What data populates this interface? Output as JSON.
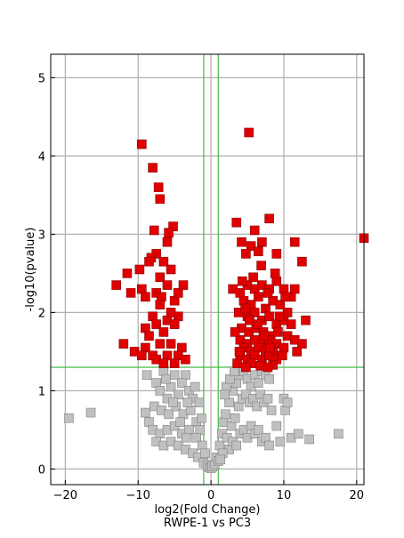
{
  "chart_data": {
    "type": "scatter",
    "xlabel": "log2(Fold Change)",
    "subtitle": "RWPE-1 vs PC3",
    "ylabel": "-log10(pvalue)",
    "xlim": [
      -22,
      21
    ],
    "ylim": [
      -0.2,
      5.3
    ],
    "xticks": [
      -20,
      -10,
      0,
      10,
      20
    ],
    "yticks": [
      0,
      1,
      2,
      3,
      4,
      5
    ],
    "grid": true,
    "thresholds": {
      "x": [
        -1,
        1
      ],
      "y": 1.3
    },
    "colors": {
      "significant": "#e00000",
      "significant_edge": "#8a0000",
      "not_significant": "#c0c0c0",
      "not_significant_edge": "#808080",
      "threshold_line": "#44bb44",
      "grid": "#b0b0b0"
    },
    "series": [
      {
        "category": "significant",
        "points": [
          [
            -9.5,
            4.15
          ],
          [
            -8,
            3.85
          ],
          [
            -7.2,
            3.6
          ],
          [
            -7,
            3.45
          ],
          [
            -5.2,
            3.1
          ],
          [
            -7.8,
            3.05
          ],
          [
            -5.8,
            3.02
          ],
          [
            -6,
            2.9
          ],
          [
            -7.5,
            2.75
          ],
          [
            -8.2,
            2.7
          ],
          [
            -8.5,
            2.65
          ],
          [
            -6.5,
            2.65
          ],
          [
            -9.8,
            2.55
          ],
          [
            -11.5,
            2.5
          ],
          [
            -5.5,
            2.55
          ],
          [
            -7,
            2.45
          ],
          [
            -13,
            2.35
          ],
          [
            -9.5,
            2.3
          ],
          [
            -6,
            2.35
          ],
          [
            -3.8,
            2.35
          ],
          [
            -11,
            2.25
          ],
          [
            -9,
            2.2
          ],
          [
            -7.5,
            2.25
          ],
          [
            -6.8,
            2.2
          ],
          [
            -5,
            2.15
          ],
          [
            -4.5,
            2.25
          ],
          [
            -7,
            2.1
          ],
          [
            -5.5,
            2.0
          ],
          [
            -8,
            1.95
          ],
          [
            -6,
            1.9
          ],
          [
            -4.5,
            1.95
          ],
          [
            -7.5,
            1.85
          ],
          [
            -9,
            1.8
          ],
          [
            -5,
            1.85
          ],
          [
            -8.5,
            1.7
          ],
          [
            -6.5,
            1.75
          ],
          [
            -7,
            1.6
          ],
          [
            -12,
            1.6
          ],
          [
            -9,
            1.55
          ],
          [
            -5.5,
            1.6
          ],
          [
            -4,
            1.55
          ],
          [
            -10.5,
            1.5
          ],
          [
            -8,
            1.45
          ],
          [
            -6,
            1.45
          ],
          [
            -4.5,
            1.45
          ],
          [
            -7.5,
            1.4
          ],
          [
            -9.5,
            1.45
          ],
          [
            -5,
            1.35
          ],
          [
            -6.5,
            1.35
          ],
          [
            -3.5,
            1.4
          ],
          [
            5.2,
            4.3
          ],
          [
            3.5,
            3.15
          ],
          [
            8,
            3.2
          ],
          [
            6,
            3.05
          ],
          [
            4.2,
            2.9
          ],
          [
            5.5,
            2.85
          ],
          [
            7,
            2.9
          ],
          [
            11.5,
            2.9
          ],
          [
            4.8,
            2.75
          ],
          [
            6.5,
            2.78
          ],
          [
            9,
            2.75
          ],
          [
            21,
            2.95
          ],
          [
            12.5,
            2.65
          ],
          [
            3,
            2.3
          ],
          [
            4,
            2.25
          ],
          [
            5,
            2.35
          ],
          [
            6,
            2.3
          ],
          [
            7,
            2.35
          ],
          [
            8,
            2.3
          ],
          [
            9,
            2.4
          ],
          [
            10,
            2.3
          ],
          [
            11,
            2.2
          ],
          [
            11.5,
            2.3
          ],
          [
            4.5,
            2.15
          ],
          [
            5.5,
            2.1
          ],
          [
            6.5,
            2.2
          ],
          [
            7.5,
            2.05
          ],
          [
            8.5,
            2.15
          ],
          [
            9.5,
            2.1
          ],
          [
            10.5,
            2.0
          ],
          [
            3.8,
            2.0
          ],
          [
            5,
            1.95
          ],
          [
            6,
            2.0
          ],
          [
            7,
            1.9
          ],
          [
            8,
            1.95
          ],
          [
            9,
            1.85
          ],
          [
            10,
            1.9
          ],
          [
            11,
            1.85
          ],
          [
            13,
            1.9
          ],
          [
            4.2,
            1.8
          ],
          [
            5.2,
            1.75
          ],
          [
            6.2,
            1.8
          ],
          [
            7.2,
            1.75
          ],
          [
            8.2,
            1.7
          ],
          [
            9.2,
            1.75
          ],
          [
            10.5,
            1.7
          ],
          [
            4,
            1.65
          ],
          [
            5,
            1.6
          ],
          [
            6,
            1.65
          ],
          [
            7,
            1.6
          ],
          [
            8,
            1.65
          ],
          [
            9,
            1.6
          ],
          [
            11.5,
            1.65
          ],
          [
            12.5,
            1.6
          ],
          [
            4.5,
            1.55
          ],
          [
            5.5,
            1.5
          ],
          [
            6.5,
            1.55
          ],
          [
            7.5,
            1.5
          ],
          [
            8.5,
            1.5
          ],
          [
            10,
            1.55
          ],
          [
            4,
            1.45
          ],
          [
            5,
            1.4
          ],
          [
            6,
            1.45
          ],
          [
            7,
            1.4
          ],
          [
            8,
            1.45
          ],
          [
            9,
            1.4
          ],
          [
            3.6,
            1.35
          ],
          [
            5.5,
            1.35
          ],
          [
            6.8,
            1.32
          ],
          [
            8.5,
            1.33
          ],
          [
            4.8,
            1.3
          ],
          [
            7.8,
            1.3
          ],
          [
            3.9,
            1.5
          ],
          [
            9.8,
            1.45
          ],
          [
            6.4,
            1.85
          ],
          [
            7.8,
            2.25
          ],
          [
            5.8,
            2.45
          ],
          [
            8.8,
            2.5
          ],
          [
            4.3,
            2.4
          ],
          [
            10.2,
            2.2
          ],
          [
            3.3,
            1.75
          ],
          [
            11.8,
            1.5
          ],
          [
            6.9,
            2.6
          ],
          [
            9.4,
            1.95
          ],
          [
            4.7,
            2.05
          ],
          [
            7.3,
            1.7
          ],
          [
            5.3,
            1.9
          ],
          [
            8.1,
            1.55
          ]
        ]
      },
      {
        "category": "not_significant",
        "points": [
          [
            -19.5,
            0.65
          ],
          [
            -16.5,
            0.72
          ],
          [
            -8.8,
            1.2
          ],
          [
            -6.5,
            1.25
          ],
          [
            -5,
            1.2
          ],
          [
            -3.5,
            1.2
          ],
          [
            -9,
            0.72
          ],
          [
            -8.5,
            0.6
          ],
          [
            -7.5,
            1.1
          ],
          [
            -7,
            1.0
          ],
          [
            -6,
            0.9
          ],
          [
            -5.5,
            1.05
          ],
          [
            -4.5,
            0.95
          ],
          [
            -4,
            1.1
          ],
          [
            -3,
            1.0
          ],
          [
            -2.5,
            0.9
          ],
          [
            -7.8,
            0.8
          ],
          [
            -6.8,
            0.75
          ],
          [
            -5.8,
            0.7
          ],
          [
            -4.8,
            0.8
          ],
          [
            -3.8,
            0.7
          ],
          [
            -2.8,
            0.75
          ],
          [
            -2,
            0.6
          ],
          [
            -1.5,
            0.5
          ],
          [
            -8,
            0.5
          ],
          [
            -7,
            0.45
          ],
          [
            -6,
            0.5
          ],
          [
            -5,
            0.55
          ],
          [
            -4,
            0.45
          ],
          [
            -3,
            0.5
          ],
          [
            -2,
            0.4
          ],
          [
            -1.2,
            0.3
          ],
          [
            -7.5,
            0.35
          ],
          [
            -6.5,
            0.3
          ],
          [
            -5.5,
            0.35
          ],
          [
            -4.5,
            0.3
          ],
          [
            -3.5,
            0.25
          ],
          [
            -2.5,
            0.2
          ],
          [
            -1.8,
            0.15
          ],
          [
            -1,
            0.08
          ],
          [
            -0.8,
            0.2
          ],
          [
            -0.5,
            0.05
          ],
          [
            -0.2,
            0.02
          ],
          [
            0,
            0.01
          ],
          [
            0.2,
            0.03
          ],
          [
            0.5,
            0.06
          ],
          [
            0.8,
            0.15
          ],
          [
            1,
            0.1
          ],
          [
            -6.2,
            1.15
          ],
          [
            -5.2,
            0.85
          ],
          [
            -3.2,
            0.85
          ],
          [
            -2.2,
            1.05
          ],
          [
            -1.6,
            0.85
          ],
          [
            -1.3,
            0.65
          ],
          [
            -4.2,
            0.6
          ],
          [
            -3.4,
            0.4
          ],
          [
            1.2,
            0.3
          ],
          [
            1.5,
            0.45
          ],
          [
            1.8,
            0.6
          ],
          [
            2,
            0.7
          ],
          [
            2.5,
            0.85
          ],
          [
            3,
            1.0
          ],
          [
            3.5,
            1.1
          ],
          [
            4,
            1.2
          ],
          [
            4.5,
            1.25
          ],
          [
            5,
            1.15
          ],
          [
            5.5,
            1.05
          ],
          [
            6,
            1.2
          ],
          [
            6.5,
            1.1
          ],
          [
            7,
            1.25
          ],
          [
            7.5,
            1.2
          ],
          [
            8,
            1.15
          ],
          [
            2.2,
            0.4
          ],
          [
            2.8,
            0.55
          ],
          [
            3.3,
            0.65
          ],
          [
            3.8,
            0.8
          ],
          [
            4.3,
            0.9
          ],
          [
            4.8,
            0.95
          ],
          [
            5.3,
            0.85
          ],
          [
            5.8,
            0.9
          ],
          [
            6.3,
            0.8
          ],
          [
            6.8,
            0.95
          ],
          [
            7.3,
            0.85
          ],
          [
            7.8,
            0.9
          ],
          [
            8.3,
            0.75
          ],
          [
            2.5,
            0.25
          ],
          [
            3,
            0.35
          ],
          [
            3.5,
            0.3
          ],
          [
            4,
            0.45
          ],
          [
            4.5,
            0.5
          ],
          [
            5,
            0.4
          ],
          [
            5.5,
            0.55
          ],
          [
            6,
            0.45
          ],
          [
            6.5,
            0.5
          ],
          [
            7,
            0.35
          ],
          [
            7.5,
            0.4
          ],
          [
            8,
            0.3
          ],
          [
            9,
            0.55
          ],
          [
            10,
            0.9
          ],
          [
            10.2,
            0.75
          ],
          [
            10.5,
            0.85
          ],
          [
            11,
            0.4
          ],
          [
            12,
            0.45
          ],
          [
            13.5,
            0.38
          ],
          [
            17.5,
            0.45
          ],
          [
            9.5,
            0.35
          ],
          [
            1.6,
            0.2
          ],
          [
            1.3,
            0.12
          ],
          [
            2.1,
            1.05
          ],
          [
            2.6,
            1.15
          ],
          [
            3.2,
            1.25
          ],
          [
            1.9,
            0.95
          ]
        ]
      }
    ]
  }
}
